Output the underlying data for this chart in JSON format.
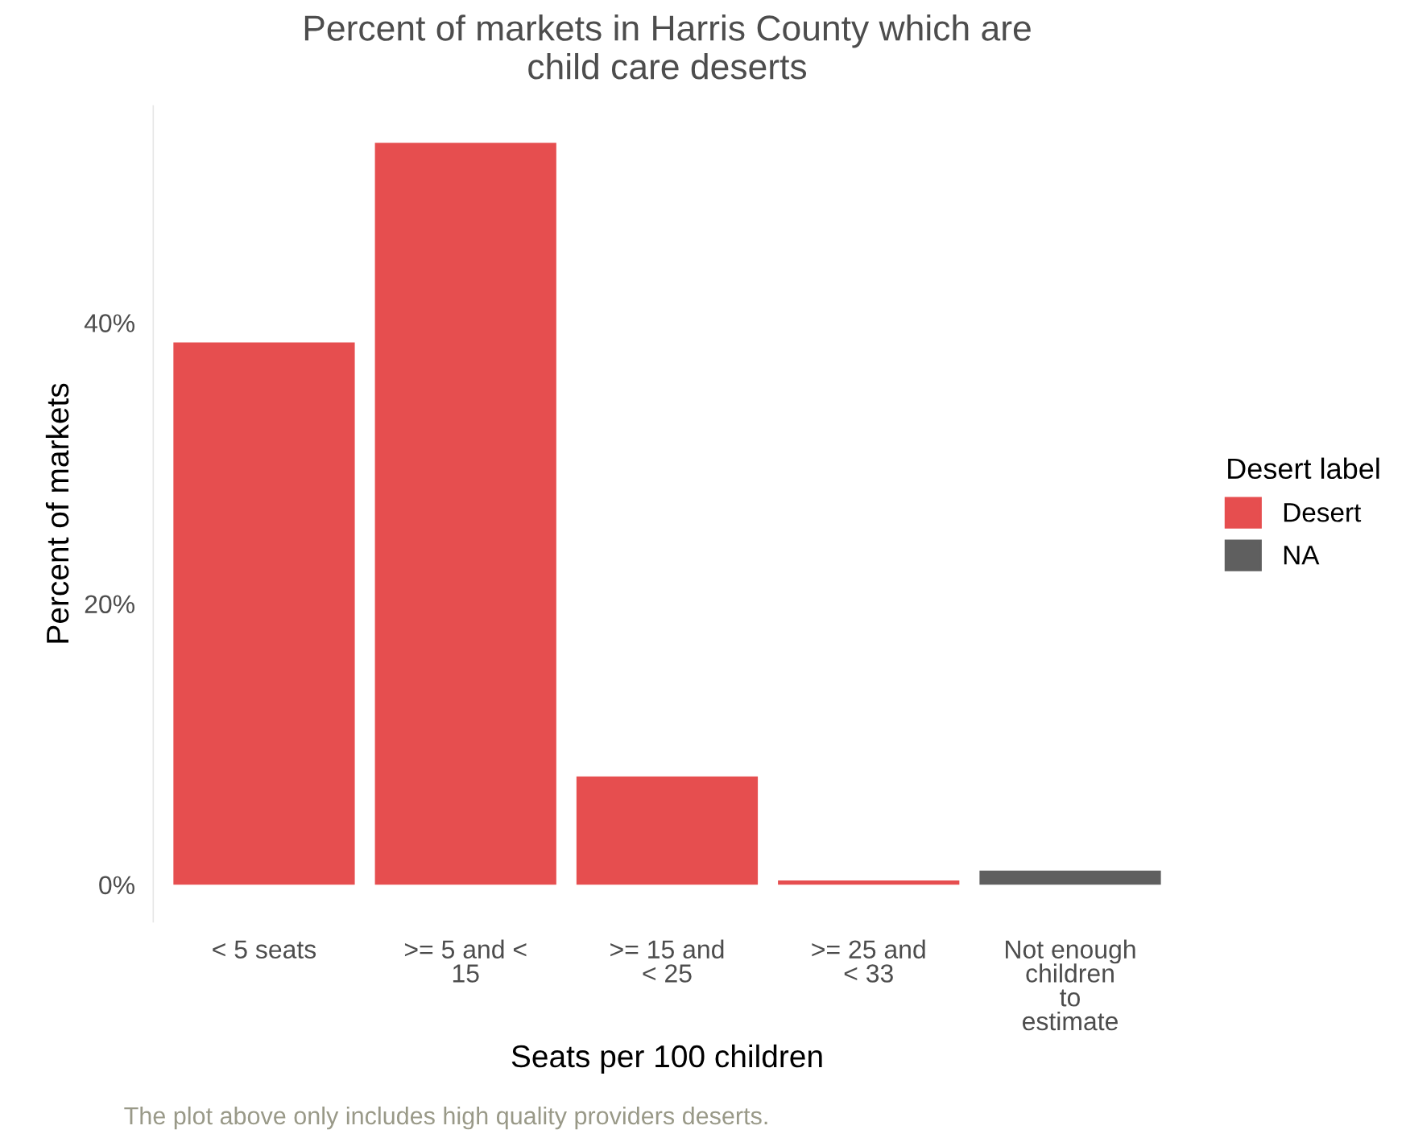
{
  "chart_data": {
    "type": "bar",
    "title": "Percent of markets in Harris County which are\nchild care deserts",
    "xlabel": "Seats per 100 children",
    "ylabel": "Percent of markets",
    "legend_title": "Desert label",
    "categories": [
      "< 5 seats",
      ">= 5 and <\n15",
      ">= 15 and\n< 25",
      ">= 25 and\n< 33",
      "Not enough\nchildren\nto\nestimate"
    ],
    "series": [
      {
        "name": "Desert",
        "color": "#e64e4f",
        "values": [
          38.6,
          52.8,
          7.7,
          0.3,
          null
        ]
      },
      {
        "name": "NA",
        "color": "#5f5f5f",
        "values": [
          null,
          null,
          null,
          null,
          1.0
        ]
      }
    ],
    "ylim": [
      -2.64,
      55.44
    ],
    "yticks": [
      {
        "value": 0,
        "label": "0%"
      },
      {
        "value": 20,
        "label": "20%"
      },
      {
        "value": 40,
        "label": "40%"
      }
    ],
    "grid": false,
    "legend": "right",
    "annotations": [
      "The plot above only includes high quality providers deserts."
    ]
  }
}
